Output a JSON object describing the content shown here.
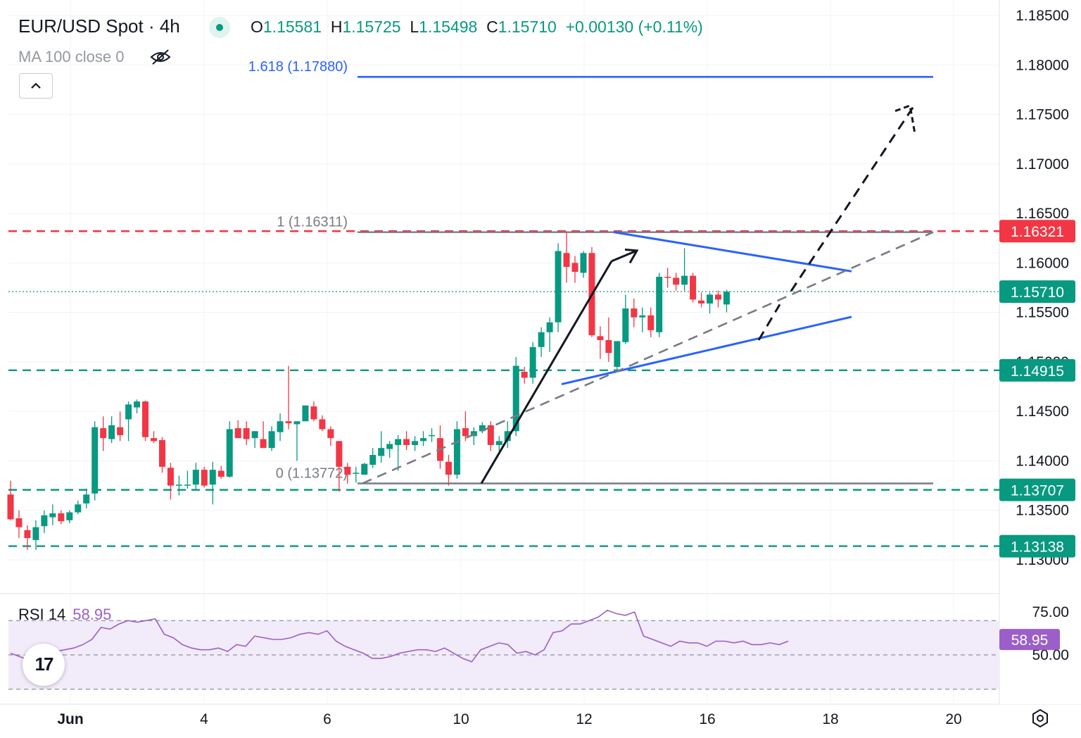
{
  "header": {
    "symbol_title": "EUR/USD Spot · 4h",
    "open_key": "O",
    "open": "1.15581",
    "high_key": "H",
    "high": "1.15725",
    "low_key": "L",
    "low": "1.15498",
    "close_key": "C",
    "close": "1.15710",
    "change": "+0.00130 (+0.11%)",
    "ma_label": "MA 100 close 0"
  },
  "rsi_panel": {
    "label": "RSI 14",
    "value": "58.95"
  },
  "logo_text": "17",
  "colors": {
    "up": "#089981",
    "down": "#f23645",
    "fib_line": "#2962ff",
    "trend_line": "#2962ff",
    "resistance": "#f23645",
    "support": "#089981",
    "rsi_line": "#9c5fc9",
    "rsi_fill": "#f2ebfa"
  },
  "icons": [
    "live-status-dot",
    "eye-hidden-icon",
    "chevron-up-icon",
    "tradingview-logo",
    "settings-icon"
  ],
  "chart_data": [
    {
      "type": "candlestick",
      "title": "EUR/USD Spot · 4h",
      "x_tick_labels": [
        "Jun",
        "4",
        "6",
        "10",
        "12",
        "16",
        "18",
        "20"
      ],
      "y_tick_labels": [
        "1.18500",
        "1.18000",
        "1.17500",
        "1.17000",
        "1.16500",
        "1.16000",
        "1.15500",
        "1.15000",
        "1.14500",
        "1.14000",
        "1.13500",
        "1.13000"
      ],
      "ylim": [
        1.1275,
        1.1855
      ],
      "grid": true,
      "candles_ohlc": [
        [
          1.1366,
          1.138,
          1.134,
          1.1341
        ],
        [
          1.1342,
          1.135,
          1.1322,
          1.1333
        ],
        [
          1.133,
          1.1335,
          1.131,
          1.1322
        ],
        [
          1.132,
          1.134,
          1.131,
          1.1333
        ],
        [
          1.1334,
          1.135,
          1.1327,
          1.1345
        ],
        [
          1.1343,
          1.1356,
          1.1335,
          1.1347
        ],
        [
          1.1347,
          1.135,
          1.1336,
          1.1339
        ],
        [
          1.134,
          1.135,
          1.1337,
          1.1348
        ],
        [
          1.1348,
          1.136,
          1.1346,
          1.1356
        ],
        [
          1.1357,
          1.1372,
          1.1352,
          1.1366
        ],
        [
          1.1367,
          1.144,
          1.136,
          1.1434
        ],
        [
          1.1433,
          1.1445,
          1.141,
          1.1423
        ],
        [
          1.1422,
          1.1445,
          1.1418,
          1.1436
        ],
        [
          1.1434,
          1.145,
          1.142,
          1.1426
        ],
        [
          1.1442,
          1.146,
          1.142,
          1.1457
        ],
        [
          1.1454,
          1.1462,
          1.1448,
          1.146
        ],
        [
          1.146,
          1.1461,
          1.142,
          1.1424
        ],
        [
          1.1423,
          1.143,
          1.1418,
          1.142
        ],
        [
          1.1421,
          1.1424,
          1.1388,
          1.1394
        ],
        [
          1.1393,
          1.1398,
          1.1361,
          1.1375
        ],
        [
          1.1376,
          1.1385,
          1.1365,
          1.1376
        ],
        [
          1.1375,
          1.139,
          1.1372,
          1.1376
        ],
        [
          1.1376,
          1.1398,
          1.137,
          1.1391
        ],
        [
          1.1391,
          1.1394,
          1.1373,
          1.1375
        ],
        [
          1.1376,
          1.1399,
          1.1356,
          1.1391
        ],
        [
          1.139,
          1.1395,
          1.1382,
          1.1384
        ],
        [
          1.1384,
          1.144,
          1.1383,
          1.1432
        ],
        [
          1.1433,
          1.1441,
          1.1425,
          1.1423
        ],
        [
          1.1433,
          1.144,
          1.1416,
          1.1422
        ],
        [
          1.1423,
          1.143,
          1.1413,
          1.143
        ],
        [
          1.1422,
          1.144,
          1.142,
          1.1413
        ],
        [
          1.1413,
          1.1435,
          1.141,
          1.143
        ],
        [
          1.1429,
          1.1448,
          1.142,
          1.144
        ],
        [
          1.144,
          1.1496,
          1.1432,
          1.1438
        ],
        [
          1.1437,
          1.144,
          1.14,
          1.144
        ],
        [
          1.144,
          1.1451,
          1.1447,
          1.1456
        ],
        [
          1.1455,
          1.146,
          1.144,
          1.1442
        ],
        [
          1.1442,
          1.1446,
          1.143,
          1.1432
        ],
        [
          1.1432,
          1.1435,
          1.1415,
          1.1423
        ],
        [
          1.142,
          1.142,
          1.1369,
          1.1394
        ],
        [
          1.1394,
          1.1398,
          1.1377,
          1.1386
        ],
        [
          1.1387,
          1.1394,
          1.1378,
          1.1388
        ],
        [
          1.1386,
          1.1398,
          1.1391,
          1.1397
        ],
        [
          1.1396,
          1.1413,
          1.1393,
          1.1406
        ],
        [
          1.1405,
          1.143,
          1.1398,
          1.1413
        ],
        [
          1.1412,
          1.142,
          1.1403,
          1.1417
        ],
        [
          1.1416,
          1.1426,
          1.139,
          1.1422
        ],
        [
          1.1422,
          1.143,
          1.1411,
          1.1416
        ],
        [
          1.1416,
          1.1425,
          1.141,
          1.142
        ],
        [
          1.142,
          1.143,
          1.1415,
          1.1423
        ],
        [
          1.1425,
          1.1433,
          1.1419,
          1.1426
        ],
        [
          1.1423,
          1.1436,
          1.1392,
          1.14
        ],
        [
          1.1399,
          1.1406,
          1.1375,
          1.1386
        ],
        [
          1.1386,
          1.144,
          1.1382,
          1.1432
        ],
        [
          1.1433,
          1.145,
          1.142,
          1.1425
        ],
        [
          1.1425,
          1.1434,
          1.1416,
          1.143
        ],
        [
          1.143,
          1.1439,
          1.1428,
          1.1436
        ],
        [
          1.1436,
          1.144,
          1.141,
          1.1416
        ],
        [
          1.1416,
          1.1425,
          1.141,
          1.142
        ],
        [
          1.142,
          1.144,
          1.1413,
          1.143
        ],
        [
          1.143,
          1.1505,
          1.1425,
          1.1496
        ],
        [
          1.149,
          1.1495,
          1.1478,
          1.1484
        ],
        [
          1.1484,
          1.152,
          1.1478,
          1.1515
        ],
        [
          1.1515,
          1.1535,
          1.1505,
          1.153
        ],
        [
          1.153,
          1.1545,
          1.151,
          1.154
        ],
        [
          1.154,
          1.162,
          1.153,
          1.1612
        ],
        [
          1.161,
          1.1632,
          1.158,
          1.1596
        ],
        [
          1.16,
          1.1607,
          1.158,
          1.1591
        ],
        [
          1.159,
          1.1612,
          1.1585,
          1.161
        ],
        [
          1.161,
          1.1616,
          1.1525,
          1.1527
        ],
        [
          1.1526,
          1.1536,
          1.1503,
          1.1522
        ],
        [
          1.1522,
          1.1545,
          1.15,
          1.1509
        ],
        [
          1.1495,
          1.151,
          1.1492,
          1.1521
        ],
        [
          1.152,
          1.1568,
          1.1518,
          1.1554
        ],
        [
          1.1554,
          1.1564,
          1.1535,
          1.1545
        ],
        [
          1.1545,
          1.1555,
          1.153,
          1.1547
        ],
        [
          1.1547,
          1.1555,
          1.1525,
          1.1532
        ],
        [
          1.153,
          1.159,
          1.1525,
          1.1586
        ],
        [
          1.1586,
          1.1595,
          1.1575,
          1.1585
        ],
        [
          1.1585,
          1.159,
          1.1572,
          1.1578
        ],
        [
          1.1578,
          1.1615,
          1.1572,
          1.1587
        ],
        [
          1.1587,
          1.159,
          1.156,
          1.1563
        ],
        [
          1.1562,
          1.157,
          1.1555,
          1.1559
        ],
        [
          1.1559,
          1.157,
          1.1549,
          1.1568
        ],
        [
          1.1568,
          1.1572,
          1.1555,
          1.1563
        ],
        [
          1.1558,
          1.1573,
          1.155,
          1.1571
        ]
      ],
      "horizontal_levels": [
        {
          "price": 1.16321,
          "label": "1.16321",
          "color": "#f23645",
          "style": "dashed"
        },
        {
          "price": 1.1571,
          "label": "1.15710",
          "color": "#089981",
          "style": "dotted"
        },
        {
          "price": 1.14915,
          "label": "1.14915",
          "color": "#089981",
          "style": "dashed"
        },
        {
          "price": 1.13707,
          "label": "1.13707",
          "color": "#089981",
          "style": "dashed"
        },
        {
          "price": 1.13138,
          "label": "1.13138",
          "color": "#089981",
          "style": "dashed"
        }
      ],
      "fibonacci": [
        {
          "ratio": "0",
          "price": "1.13772",
          "label": "0 (1.13772)"
        },
        {
          "ratio": "1",
          "price": "1.16311",
          "label": "1 (1.16311)"
        },
        {
          "ratio": "1.618",
          "price": "1.17880",
          "label": "1.618 (1.17880)"
        }
      ]
    },
    {
      "type": "line",
      "title": "RSI 14",
      "current_value": 58.95,
      "y_tick_labels": [
        "75.00",
        "50.00"
      ],
      "ylim": [
        28,
        80
      ],
      "band": [
        30,
        70
      ],
      "values": [
        51,
        49,
        47,
        48,
        50,
        52,
        53,
        54,
        56,
        59,
        66,
        65,
        68,
        70,
        69,
        70,
        71,
        62,
        60,
        56,
        54,
        53,
        53,
        54,
        52,
        56,
        55,
        61,
        60,
        59,
        59,
        60,
        62,
        63,
        62,
        64,
        58,
        55,
        53,
        51,
        48,
        48,
        49,
        51,
        52,
        53,
        53,
        52,
        54,
        51,
        48,
        46,
        53,
        55,
        57,
        56,
        51,
        52,
        50,
        53,
        63,
        64,
        68,
        68,
        70,
        72,
        76,
        74,
        73,
        75,
        61,
        59,
        57,
        55,
        58,
        57,
        57,
        55,
        58,
        58,
        57,
        58,
        56,
        56,
        57,
        56,
        58
      ]
    }
  ]
}
